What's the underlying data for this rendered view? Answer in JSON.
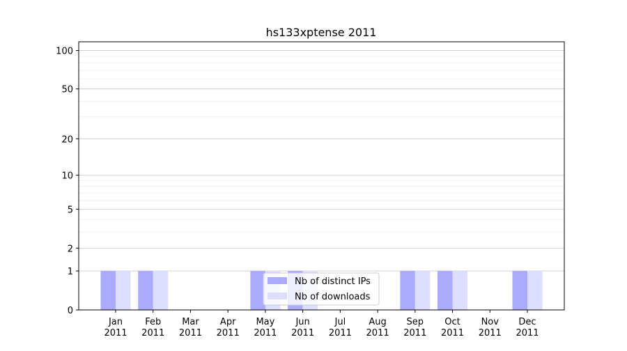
{
  "chart_data": {
    "type": "bar",
    "title": "hs133xptense 2011",
    "xlabel": "",
    "ylabel": "",
    "yscale": "log(1+y)",
    "ylim": [
      0,
      117
    ],
    "yticks": [
      0,
      1,
      2,
      5,
      10,
      20,
      50,
      100
    ],
    "ytick_labels": [
      "0",
      "1",
      "2",
      "5",
      "10",
      "20",
      "50",
      "100"
    ],
    "grid": true,
    "categories": [
      "Jan\n2011",
      "Feb\n2011",
      "Mar\n2011",
      "Apr\n2011",
      "May\n2011",
      "Jun\n2011",
      "Jul\n2011",
      "Aug\n2011",
      "Sep\n2011",
      "Oct\n2011",
      "Nov\n2011",
      "Dec\n2011"
    ],
    "series": [
      {
        "name": "Nb of distinct IPs",
        "color": "#aaaaff",
        "values": [
          1,
          1,
          0,
          0,
          1,
          1,
          0,
          0,
          1,
          1,
          0,
          1
        ]
      },
      {
        "name": "Nb of downloads",
        "color": "#ddddff",
        "values": [
          1,
          1,
          0,
          0,
          1,
          1,
          0,
          0,
          1,
          1,
          0,
          1
        ]
      }
    ],
    "legend_position": "lower-center"
  }
}
